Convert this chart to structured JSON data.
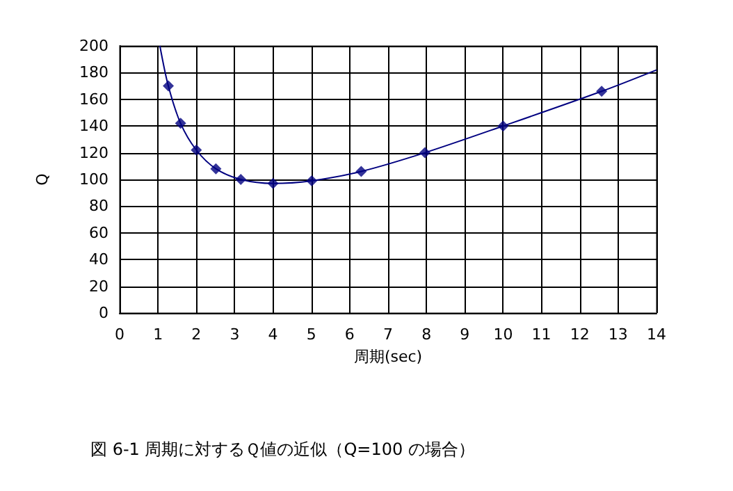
{
  "chart_data": {
    "type": "scatter",
    "title": "図 6-1 周期に対するＱ値の近似（Q=100 の場合）",
    "xlabel": "周期(sec)",
    "ylabel": "Q",
    "xlim": [
      0,
      14
    ],
    "xticks": [
      0,
      1,
      2,
      3,
      4,
      5,
      6,
      7,
      8,
      9,
      10,
      11,
      12,
      13,
      14
    ],
    "ylim": [
      0,
      200
    ],
    "yticks": [
      0,
      20,
      40,
      60,
      80,
      100,
      120,
      140,
      160,
      180,
      200
    ],
    "grid": true,
    "series": [
      {
        "color": "#000080",
        "marker": "diamond",
        "x": [
          1.27,
          1.59,
          2.0,
          2.51,
          3.16,
          4.0,
          5.01,
          6.3,
          7.96,
          10.0,
          12.57
        ],
        "values": [
          170,
          142,
          122,
          108,
          100,
          97,
          99,
          106,
          120,
          140,
          166
        ]
      },
      {
        "type": "line",
        "color": "#000080",
        "marker": "none",
        "line_style": "solid",
        "x": [
          1.05,
          1.27,
          1.59,
          2.0,
          2.51,
          3.16,
          4.0,
          5.01,
          6.3,
          7.96,
          10.0,
          12.57,
          14
        ],
        "values": [
          200,
          170,
          142,
          122,
          108,
          100,
          97,
          99,
          106,
          120,
          140,
          166,
          182
        ]
      }
    ]
  }
}
